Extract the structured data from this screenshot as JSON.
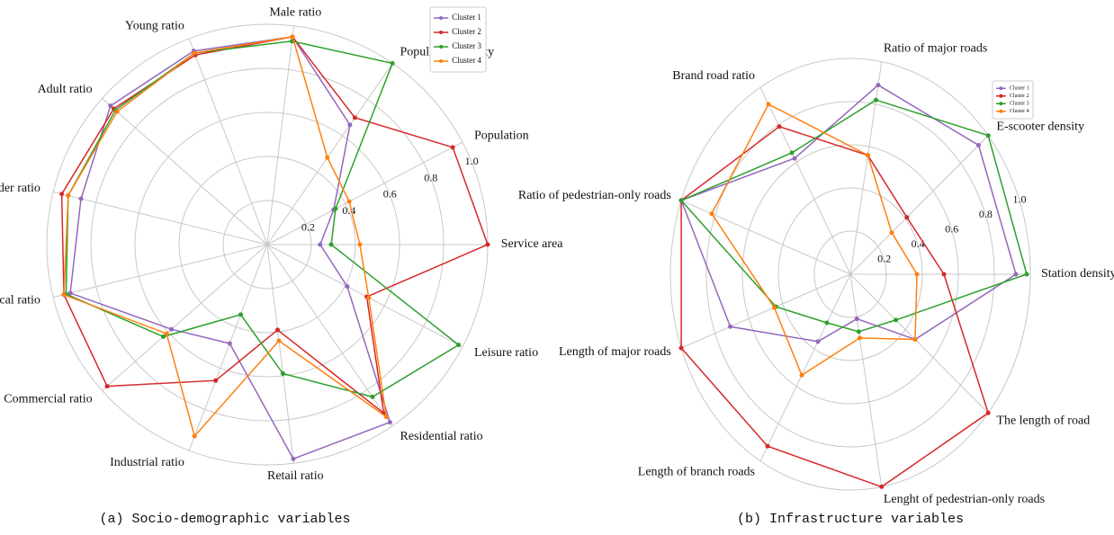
{
  "chart_data": [
    {
      "type": "radar",
      "caption": "(a) Socio-demographic variables",
      "categories": [
        "Service area",
        "Population",
        "Population density",
        "Male ratio",
        "Young ratio",
        "Adult ratio",
        "Elder ratio",
        "Local ratio",
        "Commercial ratio",
        "Industrial ratio",
        "Retail ratio",
        "Residential ratio",
        "Leisure ratio"
      ],
      "series": [
        {
          "name": "Cluster 1",
          "color": "#9467bd",
          "values": [
            0.24,
            0.34,
            0.66,
            0.95,
            0.94,
            0.95,
            0.87,
            0.92,
            0.58,
            0.48,
            0.98,
            0.98,
            0.41
          ]
        },
        {
          "name": "Cluster 2",
          "color": "#d62728",
          "values": [
            1.0,
            0.95,
            0.7,
            0.95,
            0.92,
            0.93,
            0.96,
            0.95,
            0.97,
            0.66,
            0.39,
            0.93,
            0.51
          ]
        },
        {
          "name": "Cluster 3",
          "color": "#2ca02c",
          "values": [
            0.29,
            0.35,
            1.0,
            0.93,
            0.93,
            0.92,
            0.93,
            0.94,
            0.63,
            0.34,
            0.59,
            0.84,
            0.98
          ]
        },
        {
          "name": "Cluster 4",
          "color": "#ff7f0e",
          "values": [
            0.42,
            0.42,
            0.48,
            0.95,
            0.93,
            0.91,
            0.93,
            0.95,
            0.61,
            0.93,
            0.44,
            0.95,
            0.52
          ]
        }
      ],
      "ylim": [
        0,
        1
      ],
      "yticks": [
        0.2,
        0.4,
        0.6,
        0.8,
        {
          "value": 1,
          "label": "1.0"
        }
      ],
      "grid": true,
      "legend": "upper right"
    },
    {
      "type": "radar",
      "caption": "(b) Infrastructure variables",
      "categories": [
        "Station density",
        "E-scooter density",
        "Ratio of major roads",
        "Brand road ratio",
        "Ratio of pedestrian-only roads",
        "Length of major roads",
        "Length of branch roads",
        "Lenght of pedestrian-only roads",
        "The length of road"
      ],
      "series": [
        {
          "name": "Cluster 1",
          "color": "#9467bd",
          "values": [
            0.92,
            0.93,
            0.89,
            0.62,
            1.0,
            0.71,
            0.36,
            0.21,
            0.47
          ]
        },
        {
          "name": "Cluster 2",
          "color": "#d62728",
          "values": [
            0.52,
            0.41,
            0.56,
            0.79,
            1.0,
            1.0,
            0.92,
            1.0,
            1.0
          ]
        },
        {
          "name": "Cluster 3",
          "color": "#2ca02c",
          "values": [
            0.98,
            1.0,
            0.82,
            0.65,
            1.0,
            0.44,
            0.26,
            0.27,
            0.33
          ]
        },
        {
          "name": "Cluster 4",
          "color": "#ff7f0e",
          "values": [
            0.37,
            0.3,
            0.56,
            0.91,
            0.82,
            0.45,
            0.54,
            0.3,
            0.47
          ]
        }
      ],
      "ylim": [
        0,
        1
      ],
      "yticks": [
        0.2,
        0.4,
        0.6,
        0.8,
        {
          "value": 1,
          "label": "1.0"
        }
      ],
      "grid": true,
      "legend": "upper right"
    }
  ]
}
